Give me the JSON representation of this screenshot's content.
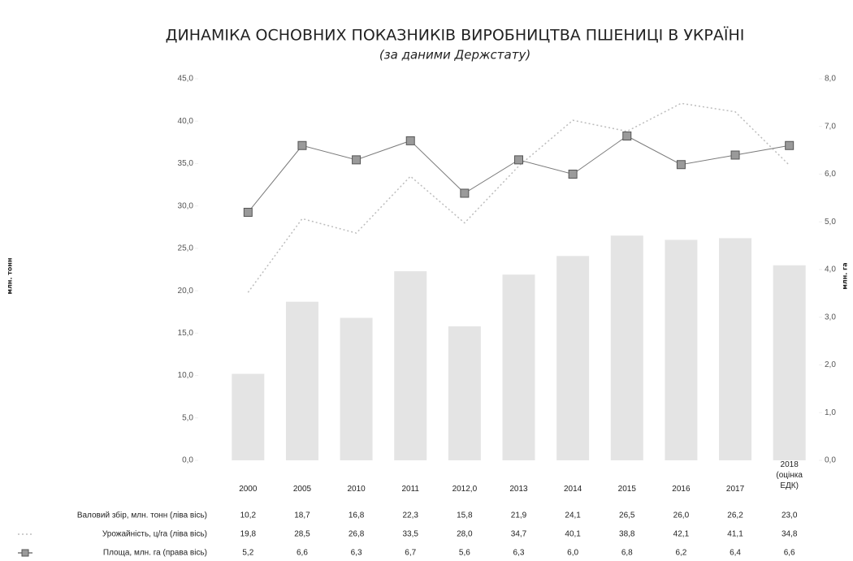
{
  "chart_data": {
    "type": "combo",
    "title": "ДИНАМІКА ОСНОВНИХ ПОКАЗНИКІВ ВИРОБНИЦТВА ПШЕНИЦІ В УКРАЇНІ",
    "subtitle": "(за даними Держстату)",
    "y_label": "млн. тонн",
    "y2_label": "млн. га",
    "categories": [
      "2000",
      "2005",
      "2010",
      "2011",
      "2012,0",
      "2013",
      "2014",
      "2015",
      "2016",
      "2017",
      "2018 (оцінка ЕДК)"
    ],
    "ylim": [
      0,
      45
    ],
    "yticks": [
      {
        "value": 0,
        "label": "0,0"
      },
      {
        "value": 5,
        "label": "5,0"
      },
      {
        "value": 10,
        "label": "10,0"
      },
      {
        "value": 15,
        "label": "15,0"
      },
      {
        "value": 20,
        "label": "20,0"
      },
      {
        "value": 25,
        "label": "25,0"
      },
      {
        "value": 30,
        "label": "30,0"
      },
      {
        "value": 35,
        "label": "35,0"
      },
      {
        "value": 40,
        "label": "40,0"
      },
      {
        "value": 45,
        "label": "45,0"
      }
    ],
    "y2lim": [
      0,
      8
    ],
    "y2ticks": [
      {
        "value": 0,
        "label": "0,0"
      },
      {
        "value": 1,
        "label": "1,0"
      },
      {
        "value": 2,
        "label": "2,0"
      },
      {
        "value": 3,
        "label": "3,0"
      },
      {
        "value": 4,
        "label": "4,0"
      },
      {
        "value": 5,
        "label": "5,0"
      },
      {
        "value": 6,
        "label": "6,0"
      },
      {
        "value": 7,
        "label": "7,0"
      },
      {
        "value": 8,
        "label": "8,0"
      }
    ],
    "grid": false,
    "series": [
      {
        "name": "Валовий збір, млн. тонн (ліва вісь)",
        "kind": "bar",
        "color": "#e4e4e4",
        "values": [
          10.2,
          18.7,
          16.8,
          22.3,
          15.8,
          21.9,
          24.1,
          26.5,
          26.0,
          26.2,
          23.0
        ],
        "value_labels": [
          "10,2",
          "18,7",
          "16,8",
          "22,3",
          "15,8",
          "21,9",
          "24,1",
          "26,5",
          "26,0",
          "26,2",
          "23,0"
        ]
      },
      {
        "name": "Урожайність, ц/га (ліва вісь)",
        "kind": "line",
        "dashed": true,
        "color": "#bdbdbd",
        "values": [
          19.8,
          28.5,
          26.8,
          33.5,
          28.0,
          34.7,
          40.1,
          38.8,
          42.1,
          41.1,
          34.8
        ],
        "value_labels": [
          "19,8",
          "28,5",
          "26,8",
          "33,5",
          "28,0",
          "34,7",
          "40,1",
          "38,8",
          "42,1",
          "41,1",
          "34,8"
        ]
      },
      {
        "name": "Площа, млн. га (права вісь)",
        "kind": "line",
        "axis": "y2",
        "color": "#7a7a7a",
        "values": [
          5.2,
          6.6,
          6.3,
          6.7,
          5.6,
          6.3,
          6.0,
          6.8,
          6.2,
          6.4,
          6.6
        ],
        "value_labels": [
          "5,2",
          "6,6",
          "6,3",
          "6,7",
          "5,6",
          "6,3",
          "6,0",
          "6,8",
          "6,2",
          "6,4",
          "6,6"
        ]
      }
    ]
  }
}
